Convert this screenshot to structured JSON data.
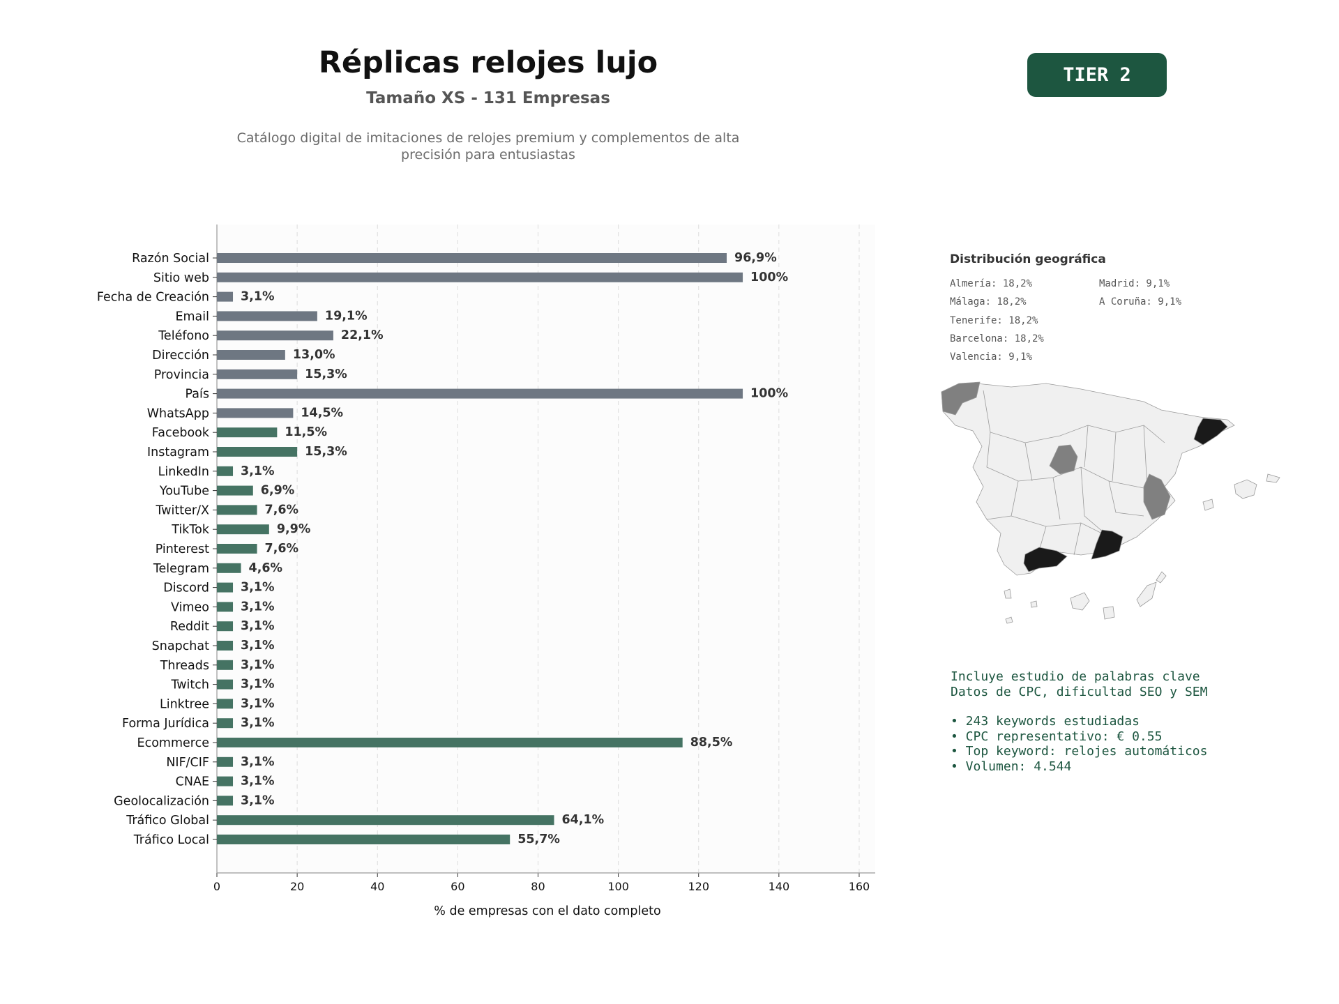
{
  "header": {
    "title": "Réplicas relojes lujo",
    "subtitle": "Tamaño XS - 131 Empresas",
    "description": "Catálogo digital de imitaciones de relojes premium y complementos de alta precisión para entusiastas",
    "tier": "TIER 2"
  },
  "chart_data": {
    "type": "bar",
    "orientation": "horizontal",
    "xlabel": "% de empresas con el dato completo",
    "xlim": [
      0,
      164
    ],
    "xticks": [
      0,
      20,
      40,
      60,
      80,
      100,
      120,
      140,
      160
    ],
    "grid": "vertical dashed",
    "colors": {
      "contact": "#6e7782",
      "digital": "#457363"
    },
    "categories": [
      "Razón Social",
      "Sitio web",
      "Fecha de Creación",
      "Email",
      "Teléfono",
      "Dirección",
      "Provincia",
      "País",
      "WhatsApp",
      "Facebook",
      "Instagram",
      "LinkedIn",
      "YouTube",
      "Twitter/X",
      "TikTok",
      "Pinterest",
      "Telegram",
      "Discord",
      "Vimeo",
      "Reddit",
      "Snapchat",
      "Threads",
      "Twitch",
      "Linktree",
      "Forma Jurídica",
      "Ecommerce",
      "NIF/CIF",
      "CNAE",
      "Geolocalización",
      "Tráfico Global",
      "Tráfico Local"
    ],
    "bar_lengths": [
      127,
      131,
      4,
      25,
      29,
      17,
      20,
      131,
      19,
      15,
      20,
      4,
      9,
      10,
      13,
      10,
      6,
      4,
      4,
      4,
      4,
      4,
      4,
      4,
      4,
      116,
      4,
      4,
      4,
      84,
      73
    ],
    "labels": [
      "96,9%",
      "100%",
      "3,1%",
      "19,1%",
      "22,1%",
      "13,0%",
      "15,3%",
      "100%",
      "14,5%",
      "11,5%",
      "15,3%",
      "3,1%",
      "6,9%",
      "7,6%",
      "9,9%",
      "7,6%",
      "4,6%",
      "3,1%",
      "3,1%",
      "3,1%",
      "3,1%",
      "3,1%",
      "3,1%",
      "3,1%",
      "3,1%",
      "88,5%",
      "3,1%",
      "3,1%",
      "3,1%",
      "64,1%",
      "55,7%"
    ],
    "group": [
      "contact",
      "contact",
      "contact",
      "contact",
      "contact",
      "contact",
      "contact",
      "contact",
      "contact",
      "digital",
      "digital",
      "digital",
      "digital",
      "digital",
      "digital",
      "digital",
      "digital",
      "digital",
      "digital",
      "digital",
      "digital",
      "digital",
      "digital",
      "digital",
      "digital",
      "digital",
      "digital",
      "digital",
      "digital",
      "digital",
      "digital"
    ]
  },
  "geo": {
    "title": "Distribución geográfica",
    "items": [
      "Almería: 18,2%",
      "Málaga: 18,2%",
      "Tenerife: 18,2%",
      "Barcelona: 18,2%",
      "Valencia: 9,1%",
      "Madrid: 9,1%",
      "A Coruña: 9,1%"
    ],
    "colors": {
      "high": "#1a1a1a",
      "mid": "#808080",
      "none": "#f0f0f0"
    }
  },
  "keywords": {
    "line1": "Incluye estudio de palabras clave",
    "line2": "Datos de CPC, dificultad SEO y SEM",
    "bullets": [
      "• 243 keywords estudiadas",
      "• CPC representativo: € 0.55",
      "• Top keyword: relojes automáticos",
      "• Volumen: 4.544"
    ]
  }
}
